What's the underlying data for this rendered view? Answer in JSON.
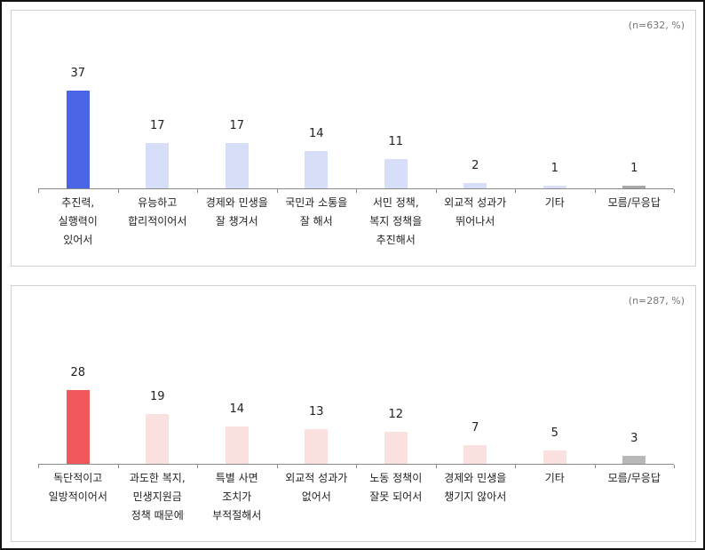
{
  "chart_data": [
    {
      "type": "bar",
      "title": "",
      "note": "(n=632, %)",
      "categories": [
        "추진력,\n실행력이\n있어서",
        "유능하고\n합리적이어서",
        "경제와 민생을\n잘 챙겨서",
        "국민과 소통을\n잘 해서",
        "서민 정책,\n복지 정책을\n추진해서",
        "외교적 성과가\n뛰어나서",
        "기타",
        "모름/무응답"
      ],
      "values": [
        37,
        17,
        17,
        14,
        11,
        2,
        1,
        1
      ],
      "value_labels": [
        "37",
        "17",
        "17",
        "14",
        "11",
        "2",
        "1",
        "1"
      ],
      "colors": [
        "#4a66e6",
        "#d7def7",
        "#d7def7",
        "#d7def7",
        "#d7def7",
        "#d7def7",
        "#d7def7",
        "#a8a8a8"
      ],
      "xlabel": "",
      "ylabel": "",
      "ylim": [
        0,
        40
      ],
      "grid": false,
      "legend": "none"
    },
    {
      "type": "bar",
      "title": "",
      "note": "(n=287, %)",
      "categories": [
        "독단적이고\n일방적이어서",
        "과도한 복지,\n민생지원금\n정책 때문에",
        "특별 사면\n조치가\n부적절해서",
        "외교적 성과가\n없어서",
        "노동 정책이\n잘못 되어서",
        "경제와 민생을\n챙기지 않아서",
        "기타",
        "모름/무응답"
      ],
      "values": [
        28,
        19,
        14,
        13,
        12,
        7,
        5,
        3
      ],
      "value_labels": [
        "28",
        "19",
        "14",
        "13",
        "12",
        "7",
        "5",
        "3"
      ],
      "colors": [
        "#f0585c",
        "#fbe0e0",
        "#fbe0e0",
        "#fbe0e0",
        "#fbe0e0",
        "#fbe0e0",
        "#fbe0e0",
        "#b8b8b8"
      ],
      "xlabel": "",
      "ylabel": "",
      "ylim": [
        0,
        40
      ],
      "grid": false,
      "legend": "none"
    }
  ]
}
